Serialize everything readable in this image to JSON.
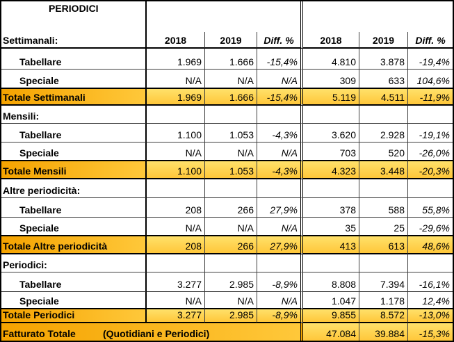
{
  "table": {
    "title": "PERIODICI",
    "columns": [
      "2018",
      "2019",
      "Diff. %",
      "2018",
      "2019",
      "Diff. %"
    ],
    "sections": [
      {
        "label": "Settimanali:",
        "rows": [
          {
            "label": "Tabellare",
            "values": [
              "1.969",
              "1.666",
              "-15,4%",
              "4.810",
              "3.878",
              "-19,4%"
            ]
          },
          {
            "label": "Speciale",
            "values": [
              "N/A",
              "N/A",
              "N/A",
              "309",
              "633",
              "104,6%"
            ]
          }
        ],
        "total": {
          "label": "Totale Settimanali",
          "values": [
            "1.969",
            "1.666",
            "-15,4%",
            "5.119",
            "4.511",
            "-11,9%"
          ]
        }
      },
      {
        "label": "Mensili:",
        "rows": [
          {
            "label": "Tabellare",
            "values": [
              "1.100",
              "1.053",
              "-4,3%",
              "3.620",
              "2.928",
              "-19,1%"
            ]
          },
          {
            "label": "Speciale",
            "values": [
              "N/A",
              "N/A",
              "N/A",
              "703",
              "520",
              "-26,0%"
            ]
          }
        ],
        "total": {
          "label": "Totale Mensili",
          "values": [
            "1.100",
            "1.053",
            "-4,3%",
            "4.323",
            "3.448",
            "-20,3%"
          ]
        }
      },
      {
        "label": "Altre periodicità:",
        "rows": [
          {
            "label": "Tabellare",
            "values": [
              "208",
              "266",
              "27,9%",
              "378",
              "588",
              "55,8%"
            ]
          },
          {
            "label": "Speciale",
            "values": [
              "N/A",
              "N/A",
              "N/A",
              "35",
              "25",
              "-29,6%"
            ]
          }
        ],
        "total": {
          "label": "Totale Altre periodicità",
          "values": [
            "208",
            "266",
            "27,9%",
            "413",
            "613",
            "48,6%"
          ]
        }
      },
      {
        "label": "Periodici:",
        "rows": [
          {
            "label": "Tabellare",
            "values": [
              "3.277",
              "2.985",
              "-8,9%",
              "8.808",
              "7.394",
              "-16,1%"
            ]
          },
          {
            "label": "Speciale",
            "values": [
              "N/A",
              "N/A",
              "N/A",
              "1.047",
              "1.178",
              "12,4%"
            ]
          }
        ],
        "total": {
          "label": "Totale Periodici",
          "values": [
            "3.277",
            "2.985",
            "-8,9%",
            "9.855",
            "8.572",
            "-13,0%"
          ]
        }
      }
    ],
    "grand_total": {
      "label": "Fatturato Totale",
      "note": "(Quotidiani e Periodici)",
      "values": [
        "47.084",
        "39.884",
        "-15,3%"
      ]
    }
  },
  "colors": {
    "total_label_from": "#F5A300",
    "total_label_to": "#FFC83A",
    "total_cell_from": "#FFE16A",
    "total_cell_to": "#FFC73A",
    "grid_line": "#000000"
  }
}
